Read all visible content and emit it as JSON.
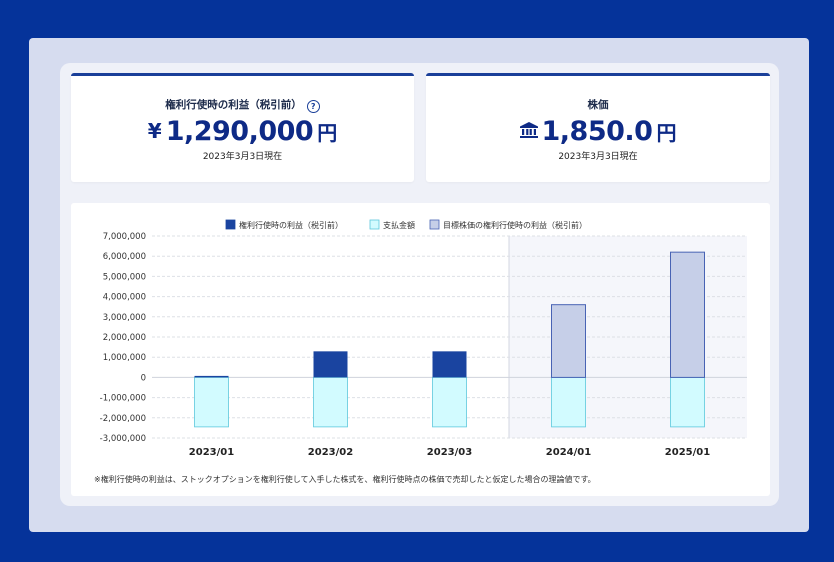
{
  "cards": {
    "profit": {
      "title": "権利行使時の利益（税引前）",
      "currency": "¥",
      "value": "1,290,000",
      "unit": "円",
      "date": "2023年3月3日現在"
    },
    "stock": {
      "title": "株価",
      "value": "1,850.0",
      "unit": "円",
      "date": "2023年3月3日現在"
    }
  },
  "note": "※権利行使時の利益は、ストックオプションを権利行使して入手した株式を、権利行使時点の株価で売却したと仮定した場合の理論値です。",
  "colors": {
    "profit": "#1a44a0",
    "payment": "#d2fbff",
    "payment_border": "#5cc8dc",
    "target": "#c6cfe8",
    "target_border": "#4863b4",
    "forecast_bg": "#f5f6fb"
  },
  "chart_data": {
    "type": "bar",
    "categories": [
      "2023/01",
      "2023/02",
      "2023/03",
      "2024/01",
      "2025/01"
    ],
    "series": [
      {
        "name": "権利行使時の利益（税引前）",
        "values": [
          50000,
          1290000,
          1290000,
          null,
          null
        ]
      },
      {
        "name": "支払金額",
        "values": [
          -2450000,
          -2450000,
          -2450000,
          -2450000,
          -2450000
        ]
      },
      {
        "name": "目標株価の権利行使時の利益（税引前）",
        "values": [
          null,
          null,
          null,
          3600000,
          6200000
        ]
      }
    ],
    "forecast_categories": [
      "2024/01",
      "2025/01"
    ],
    "ylim": [
      -3000000,
      7000000
    ],
    "yticks": [
      7000000,
      6000000,
      5000000,
      4000000,
      3000000,
      2000000,
      1000000,
      0,
      -1000000,
      -2000000,
      -3000000
    ],
    "ytick_labels": [
      "7,000,000",
      "6,000,000",
      "5,000,000",
      "4,000,000",
      "3,000,000",
      "2,000,000",
      "1,000,000",
      "0",
      "-1,000,000",
      "-2,000,000",
      "-3,000,000"
    ],
    "grid": true,
    "legend_position": "top"
  }
}
